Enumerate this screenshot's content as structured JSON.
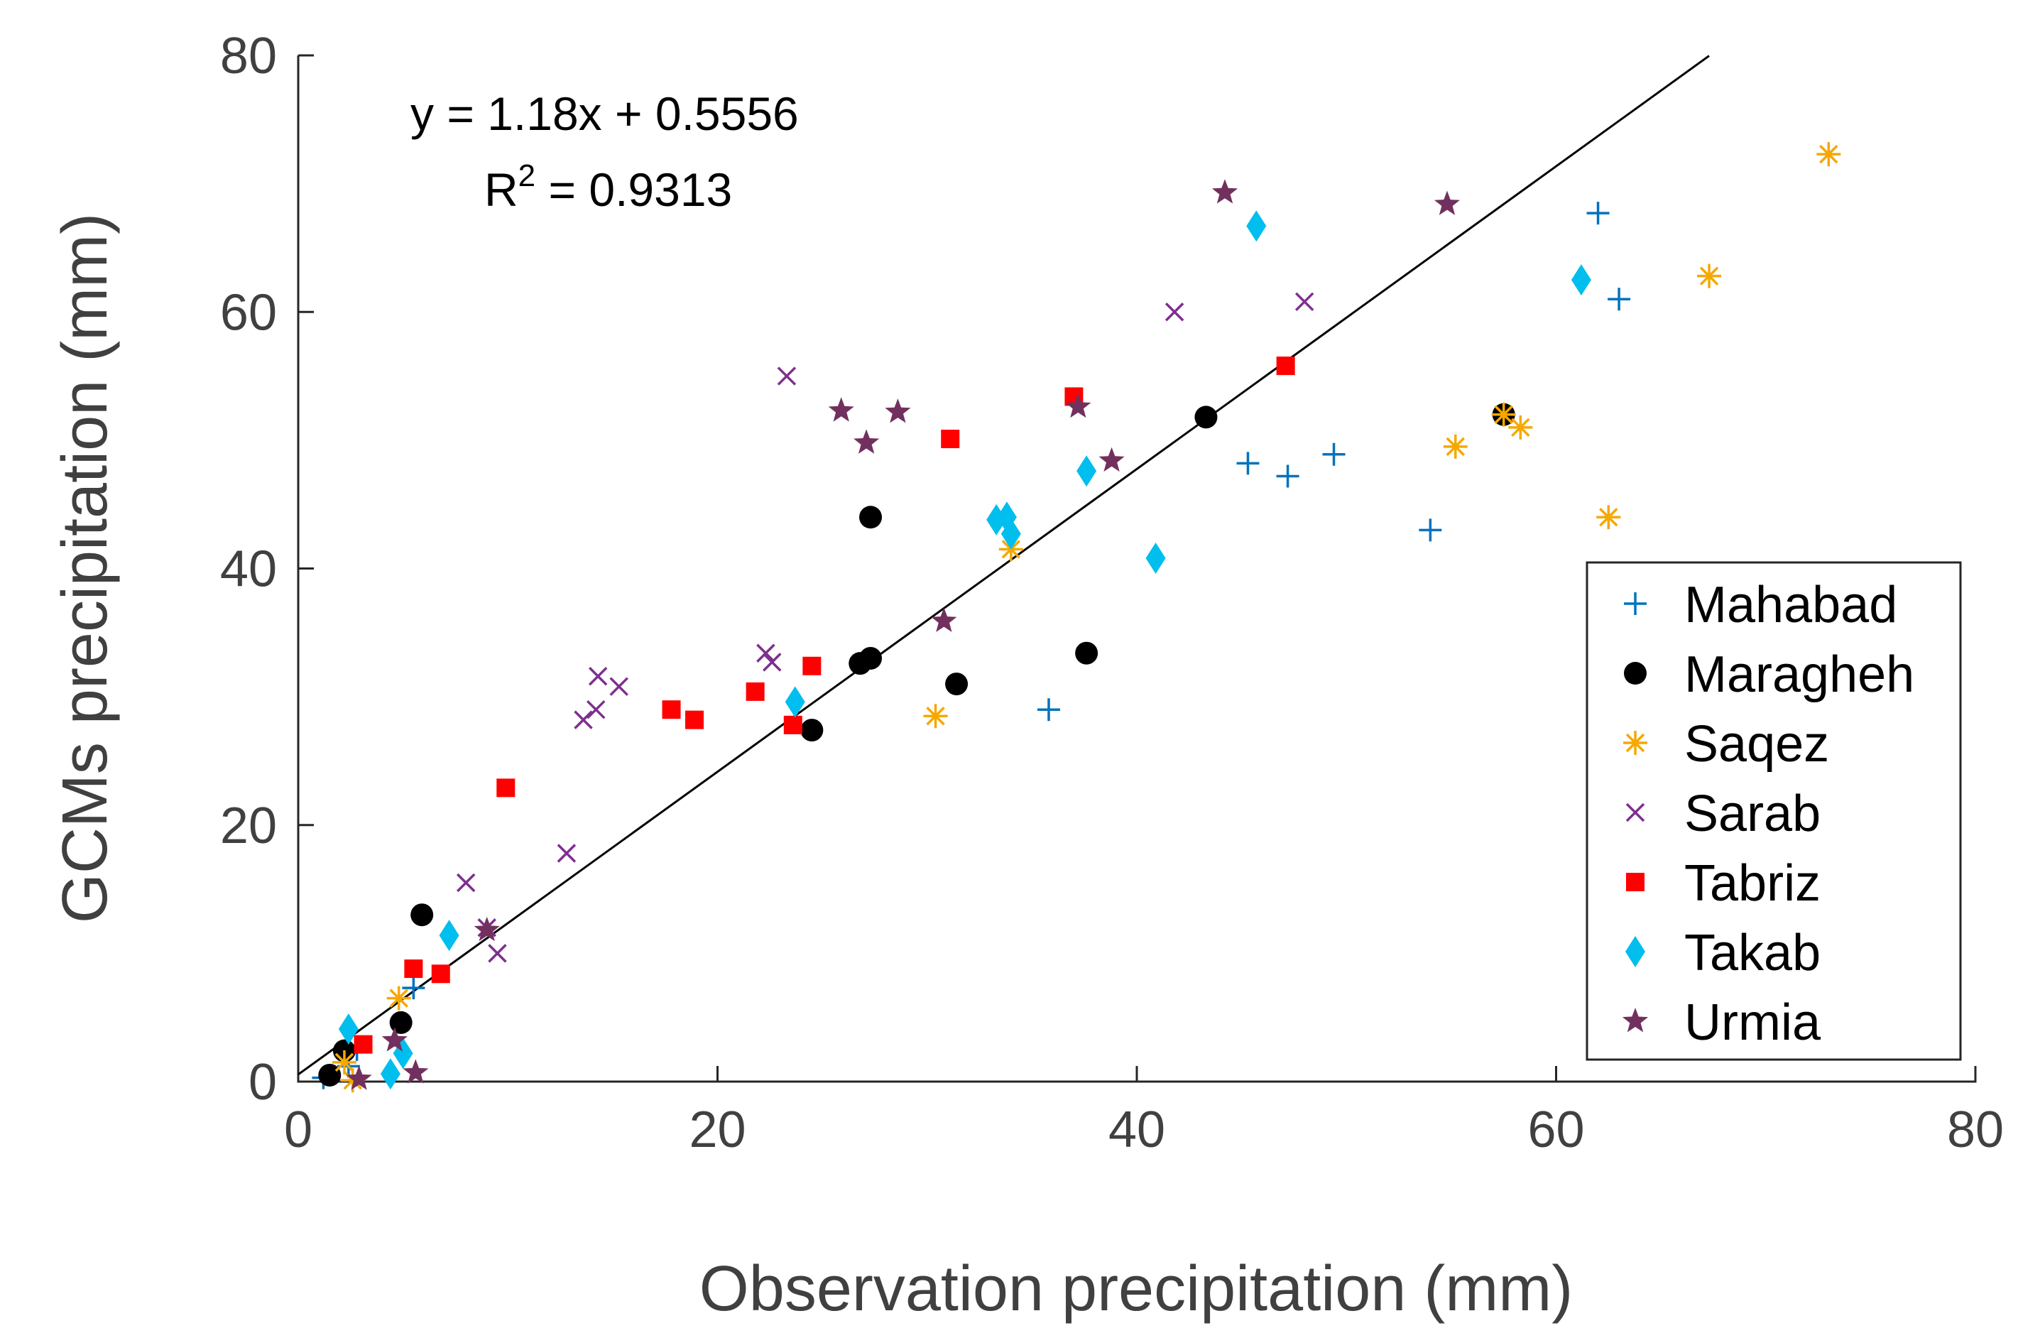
{
  "chart_data": {
    "type": "scatter",
    "title": "",
    "xlabel": "Observation precipitation (mm)",
    "ylabel": "GCMs precipitation (mm)",
    "xlim": [
      0,
      80
    ],
    "ylim": [
      0,
      80
    ],
    "xticks": [
      0,
      20,
      40,
      60,
      80
    ],
    "yticks": [
      0,
      20,
      40,
      60,
      80
    ],
    "grid": false,
    "legend_position": "bottom-right",
    "annotation": {
      "equation": "y = 1.18x + 0.5556",
      "r2_prefix": "R",
      "r2_exponent": "2",
      "r2_value": " = 0.9313"
    },
    "fit_line": {
      "slope": 1.18,
      "intercept": 0.5556,
      "x_range": [
        0,
        67.3
      ]
    },
    "series": [
      {
        "name": "Mahabad",
        "marker": "plus",
        "color": "#0072BD",
        "x": [
          62,
          63,
          45.3,
          47.2,
          49.4,
          54,
          35.8,
          5.5,
          1.2,
          2.4,
          2.8
        ],
        "y": [
          67.7,
          61,
          48.2,
          47.2,
          48.9,
          43,
          29,
          7.3,
          0.3,
          1.2,
          2.5
        ]
      },
      {
        "name": "Maragheh",
        "marker": "circle",
        "color": "#000000",
        "x": [
          43.3,
          57.5,
          27.3,
          26.8,
          27.3,
          24.5,
          31.4,
          37.6,
          5.9,
          4.9,
          2.2,
          1.5
        ],
        "y": [
          51.8,
          52,
          44,
          32.6,
          33,
          27.4,
          31,
          33.4,
          13,
          4.6,
          2.4,
          0.5
        ]
      },
      {
        "name": "Saqez",
        "marker": "asterisk",
        "color": "#F5A800",
        "x": [
          73,
          67.3,
          55.2,
          58.3,
          62.5,
          57.5,
          30.4,
          34,
          4.8,
          2.2,
          2.6
        ],
        "y": [
          72.3,
          62.8,
          49.5,
          51,
          44,
          52,
          28.5,
          41.5,
          6.5,
          1.5,
          0.1
        ]
      },
      {
        "name": "Sarab",
        "marker": "cross",
        "color": "#7E2F8E",
        "x": [
          23.3,
          41.8,
          48,
          22.3,
          22.6,
          14.2,
          14.3,
          15.3,
          13.6,
          12.8,
          8,
          9.5,
          9
        ],
        "y": [
          55,
          60,
          60.8,
          33.4,
          32.7,
          29,
          31.6,
          30.8,
          28.2,
          17.8,
          15.5,
          10,
          12
        ]
      },
      {
        "name": "Tabriz",
        "marker": "square",
        "color": "#FF0000",
        "x": [
          37,
          47.1,
          31.1,
          24.5,
          21.8,
          17.8,
          18.9,
          23.6,
          9.9,
          5.5,
          6.8,
          3.1
        ],
        "y": [
          53.4,
          55.8,
          50.1,
          32.4,
          30.4,
          29,
          28.2,
          27.8,
          22.9,
          8.8,
          8.4,
          2.9
        ]
      },
      {
        "name": "Takab",
        "marker": "diamond",
        "color": "#00BEEE",
        "x": [
          45.7,
          61.2,
          37.6,
          33.3,
          33.8,
          34,
          40.9,
          23.7,
          7.2,
          2.4,
          5,
          4.4
        ],
        "y": [
          66.7,
          62.5,
          47.6,
          43.8,
          44,
          42.7,
          40.8,
          29.6,
          11.4,
          4.1,
          2.2,
          0.6
        ]
      },
      {
        "name": "Urmia",
        "marker": "star",
        "color": "#72305E",
        "x": [
          44.2,
          54.8,
          25.9,
          28.6,
          27.1,
          37.2,
          38.8,
          30.8,
          9,
          4.6,
          5.6,
          2.9
        ],
        "y": [
          69.3,
          68.4,
          52.3,
          52.2,
          49.8,
          52.6,
          48.4,
          35.9,
          11.8,
          3.2,
          0.7,
          0.2
        ]
      }
    ]
  }
}
